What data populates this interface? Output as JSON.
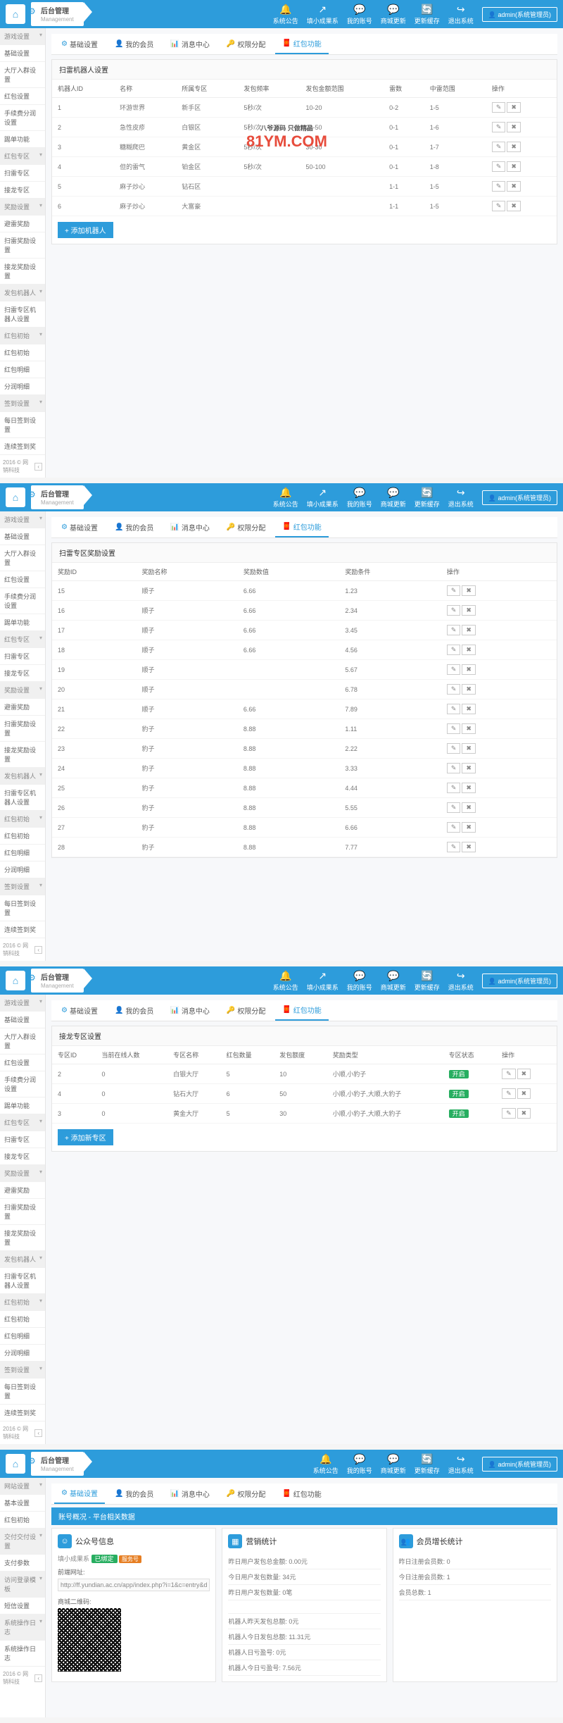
{
  "brand": {
    "title": "后台管理",
    "sub": "Management"
  },
  "topbar": [
    {
      "icon": "🔔",
      "label": "系统公告"
    },
    {
      "icon": "↗",
      "label": "填小成果系"
    },
    {
      "icon": "💬",
      "label": "我的账号"
    },
    {
      "icon": "💬",
      "label": "商城更新"
    },
    {
      "icon": "🔄",
      "label": "更新缓存"
    },
    {
      "icon": "↪",
      "label": "退出系统"
    }
  ],
  "admin": "admin(系统管理员)",
  "tabs": [
    {
      "icon": "⚙",
      "label": "基础设置"
    },
    {
      "icon": "👤",
      "label": "我的会员"
    },
    {
      "icon": "📊",
      "label": "消息中心"
    },
    {
      "icon": "🔑",
      "label": "权限分配"
    },
    {
      "icon": "🧧",
      "label": "红包功能"
    }
  ],
  "sidebar": [
    {
      "label": "游戏设置",
      "head": true
    },
    {
      "label": "基础设置"
    },
    {
      "label": "大厅入群设置"
    },
    {
      "label": "红包设置"
    },
    {
      "label": "手续费分润设置"
    },
    {
      "label": "踢单功能"
    },
    {
      "label": "红包专区",
      "head": true
    },
    {
      "label": "扫雷专区"
    },
    {
      "label": "接龙专区"
    },
    {
      "label": "奖励设置",
      "head": true
    },
    {
      "label": "避雷奖励"
    },
    {
      "label": "扫雷奖励设置"
    },
    {
      "label": "接龙奖励设置"
    },
    {
      "label": "发包机器人",
      "head": true
    },
    {
      "label": "扫雷专区机器人设置"
    },
    {
      "label": "红包初始",
      "head": true
    },
    {
      "label": "红包初始"
    },
    {
      "label": "红包明细"
    },
    {
      "label": "分润明细"
    },
    {
      "label": "签到设置",
      "head": true
    },
    {
      "label": "每日签到设置"
    },
    {
      "label": "连续签到奖"
    }
  ],
  "sidebar4": [
    {
      "label": "网站设置",
      "head": true
    },
    {
      "label": "基本设置"
    },
    {
      "label": "红包初始"
    },
    {
      "label": "交付交付设置",
      "head": true
    },
    {
      "label": "支付参数"
    },
    {
      "label": "访问登录模板",
      "head": true
    },
    {
      "label": "短信设置"
    },
    {
      "label": "系统操作日志",
      "head": true
    },
    {
      "label": "系统操作日志"
    }
  ],
  "footer": "2016 © 网销科技",
  "s1": {
    "title": "扫雷机器人设置",
    "cols": [
      "机器人ID",
      "名称",
      "所属专区",
      "发包频率",
      "发包金额范围",
      "雷数",
      "中雷范围",
      "操作"
    ],
    "rows": [
      [
        "1",
        "环游世界",
        "新手区",
        "5秒/次",
        "10-20",
        "0-2",
        "1-5"
      ],
      [
        "2",
        "急性皮疹",
        "白银区",
        "5秒/次",
        "20-50",
        "0-1",
        "1-6"
      ],
      [
        "3",
        "糖糊爬巴",
        "黄金区",
        "5秒/次",
        "30-30",
        "0-1",
        "1-7"
      ],
      [
        "4",
        "但的雷气",
        "铂金区",
        "5秒/次",
        "50-100",
        "0-1",
        "1-8"
      ],
      [
        "5",
        "麻子炒心",
        "钻石区",
        "",
        "",
        "1-1",
        "1-5"
      ],
      [
        "6",
        "麻子炒心",
        "大富豪",
        "",
        "",
        "1-1",
        "1-5"
      ]
    ],
    "add": "+ 添加机器人",
    "wm1": "八爷源码 只做精品",
    "wm2": "81YM.COM"
  },
  "s2": {
    "title": "扫雷专区奖励设置",
    "cols": [
      "奖励ID",
      "奖励名称",
      "奖励数值",
      "奖励条件",
      "操作"
    ],
    "rows": [
      [
        "15",
        "顺子",
        "6.66",
        "1.23"
      ],
      [
        "16",
        "顺子",
        "6.66",
        "2.34"
      ],
      [
        "17",
        "顺子",
        "6.66",
        "3.45"
      ],
      [
        "18",
        "顺子",
        "6.66",
        "4.56"
      ],
      [
        "19",
        "顺子",
        "",
        "5.67"
      ],
      [
        "20",
        "顺子",
        "",
        "6.78"
      ],
      [
        "21",
        "顺子",
        "6.66",
        "7.89"
      ],
      [
        "22",
        "豹子",
        "8.88",
        "1.11"
      ],
      [
        "23",
        "豹子",
        "8.88",
        "2.22"
      ],
      [
        "24",
        "豹子",
        "8.88",
        "3.33"
      ],
      [
        "25",
        "豹子",
        "8.88",
        "4.44"
      ],
      [
        "26",
        "豹子",
        "8.88",
        "5.55"
      ],
      [
        "27",
        "豹子",
        "8.88",
        "6.66"
      ],
      [
        "28",
        "豹子",
        "8.88",
        "7.77"
      ]
    ]
  },
  "s3": {
    "title": "接龙专区设置",
    "cols": [
      "专区ID",
      "当前在线人数",
      "专区名称",
      "红包数量",
      "发包额度",
      "奖励类型",
      "专区状态",
      "操作"
    ],
    "rows": [
      [
        "2",
        "0",
        "白银大厅",
        "5",
        "10",
        "小顺,小豹子",
        "开启"
      ],
      [
        "4",
        "0",
        "钻石大厅",
        "6",
        "50",
        "小顺,小豹子,大顺,大豹子",
        "开启"
      ],
      [
        "3",
        "0",
        "黄金大厅",
        "5",
        "30",
        "小顺,小豹子,大顺,大豹子",
        "开启"
      ]
    ],
    "add": "+ 添加新专区"
  },
  "s4": {
    "crumb": "账号概况 - 平台相关数据",
    "c1": {
      "title": "公众号信息",
      "sub": "填小成果系",
      "tag1": "已绑定",
      "tag2": "服务号",
      "urlLabel": "前端网址:",
      "url": "http://ff.yundian.ac.cn/app/index.php?i=1&c=entry&do=memberdom=sz_",
      "qrLabel": "商城二维码:"
    },
    "c2": {
      "title": "营销统计",
      "lines": [
        "昨日用户发包总金额: 0.00元",
        "今日用户发包数量: 34元",
        "昨日用户发包数量: 0笔",
        "",
        "机器人昨天发包总额: 0元",
        "机器人今日发包总额: 11.31元",
        "机器人日亏盈号: 0元",
        "机器人今日亏盈号: 7.56元"
      ]
    },
    "c3": {
      "title": "会员增长统计",
      "lines": [
        "昨日注册会员数: 0",
        "今日注册会员数: 1",
        "会员总数: 1"
      ]
    }
  }
}
